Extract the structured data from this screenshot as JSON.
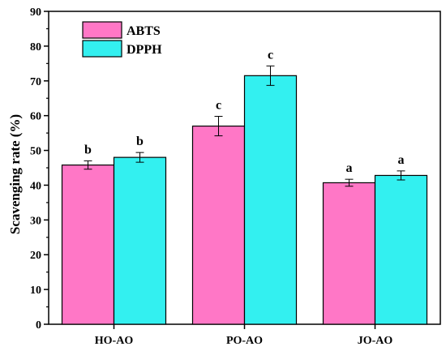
{
  "chart_data": {
    "type": "bar",
    "title": "",
    "xlabel": "",
    "ylabel": "Scavenging rate (%)",
    "ylim": [
      0,
      90
    ],
    "yticks": [
      0,
      10,
      20,
      30,
      40,
      50,
      60,
      70,
      80,
      90
    ],
    "categories": [
      "HO-AO",
      "PO-AO",
      "JO-AO"
    ],
    "legend_position": "top-left",
    "series": [
      {
        "name": "ABTS",
        "color": "#ff77c6",
        "values": [
          45.8,
          57.0,
          40.7
        ],
        "errors": [
          1.2,
          2.8,
          1.0
        ],
        "labels": [
          "b",
          "c",
          "a"
        ]
      },
      {
        "name": "DPPH",
        "color": "#33f0f0",
        "values": [
          48.0,
          71.5,
          42.8
        ],
        "errors": [
          1.4,
          2.8,
          1.3
        ],
        "labels": [
          "b",
          "c",
          "a"
        ]
      }
    ]
  }
}
